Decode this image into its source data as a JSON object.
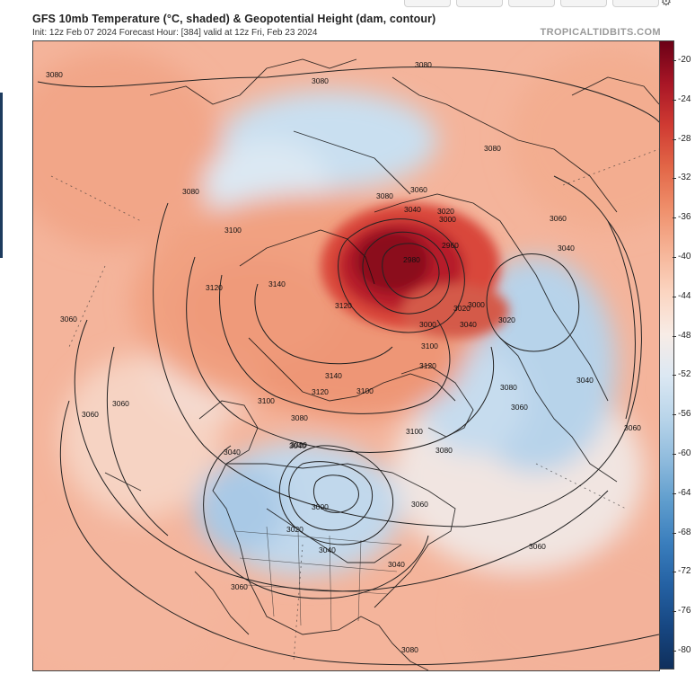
{
  "header": {
    "title": "GFS 10mb Temperature (°C, shaded) & Geopotential Height (dam, contour)",
    "subtitle": "Init: 12z Feb 07 2024   Forecast Hour: [384]   valid at 12z Fri, Feb 23 2024",
    "brand": "TROPICALTIDBITS.COM"
  },
  "colorbar": {
    "labels": [
      "-20",
      "-24",
      "-28",
      "-32",
      "-36",
      "-40",
      "-44",
      "-48",
      "-52",
      "-56",
      "-60",
      "-64",
      "-68",
      "-72",
      "-76",
      "-80"
    ],
    "colors": [
      "#6b0016",
      "#a81626",
      "#cf3a32",
      "#e26647",
      "#ef8f6b",
      "#f6b396",
      "#fbd5c1",
      "#f8ece6",
      "#dce8f3",
      "#b9d5ea",
      "#8fbbdd",
      "#5f9dcd",
      "#3a7ebd",
      "#2461a3",
      "#174782",
      "#0f2f5c"
    ]
  },
  "map": {
    "contour_labels": [
      "3080",
      "3080",
      "3080",
      "3080",
      "3080",
      "3080",
      "3080",
      "3080",
      "3080",
      "3080",
      "3060",
      "3060",
      "3060",
      "3060",
      "3060",
      "3060",
      "3060",
      "3060",
      "3060",
      "3060",
      "3040",
      "3040",
      "3040",
      "3040",
      "3040",
      "3040",
      "3040",
      "3040",
      "3020",
      "3020",
      "3020",
      "3020",
      "3020",
      "3000",
      "3000",
      "3000",
      "3000",
      "2980",
      "2960",
      "3100",
      "3100",
      "3100",
      "3100",
      "3100",
      "3120",
      "3120",
      "3120",
      "3120",
      "3140",
      "3140"
    ]
  }
}
